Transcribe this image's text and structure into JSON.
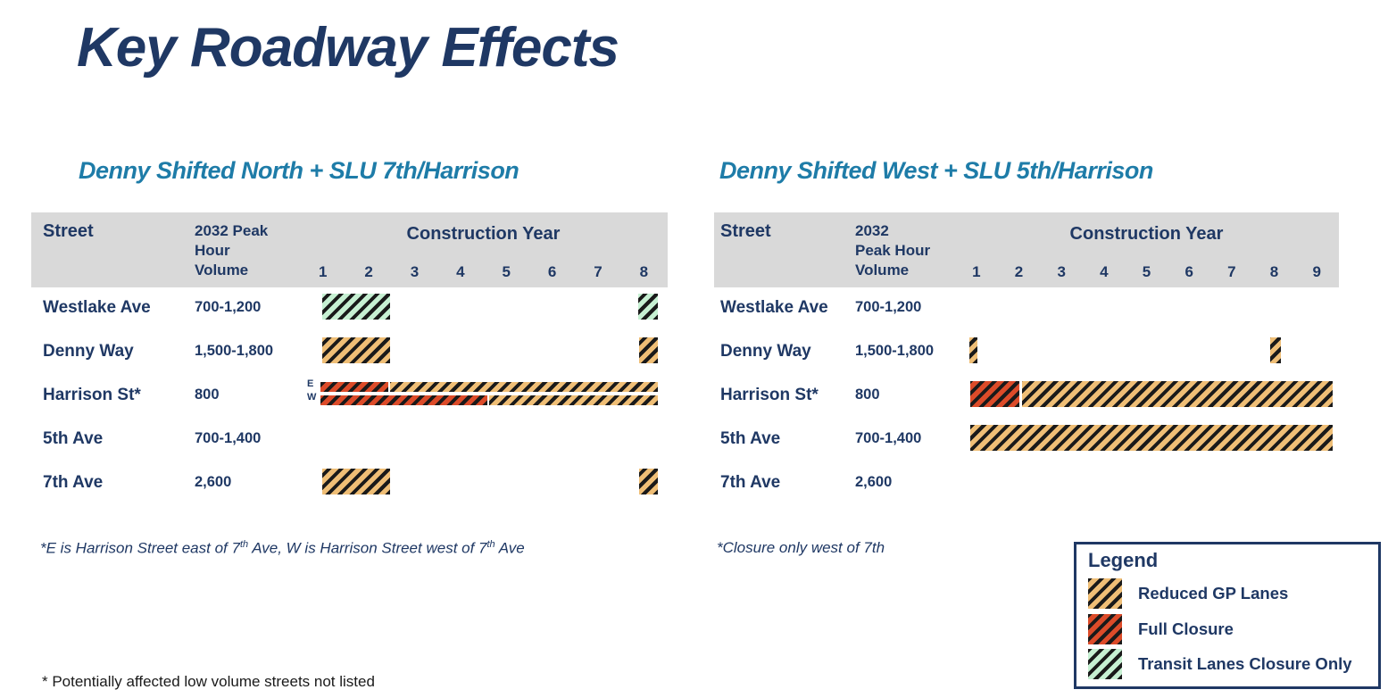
{
  "title": "Key Roadway Effects",
  "colors": {
    "navy": "#1f3864",
    "teal": "#1e7ca8",
    "header_gray": "#d9d9d9",
    "reduced_gp": "#efbe76",
    "full_closure": "#dc4b29",
    "transit_only": "#c6f0d2",
    "stripe": "#1a1a1a"
  },
  "tables": [
    {
      "subtitle": "Denny Shifted North + SLU 7th/Harrison",
      "header": {
        "street": "Street",
        "volume": "2032 Peak\nHour\nVolume",
        "construction": "Construction Year",
        "years": [
          "1",
          "2",
          "3",
          "4",
          "5",
          "6",
          "7",
          "8"
        ]
      },
      "rows": [
        {
          "street": "Westlake Ave",
          "volume": "700-1,200",
          "bars": [
            {
              "type": "transit",
              "start_pct": 6.1,
              "end_pct": 24.6,
              "years_approx": "1-2"
            },
            {
              "type": "transit",
              "start_pct": 92.2,
              "end_pct": 97.6,
              "years_approx": "8"
            }
          ]
        },
        {
          "street": "Denny Way",
          "volume": "1,500-1,800",
          "bars": [
            {
              "type": "gp",
              "start_pct": 6.1,
              "end_pct": 24.6,
              "years_approx": "1-2"
            },
            {
              "type": "gp",
              "start_pct": 92.5,
              "end_pct": 97.6,
              "years_approx": "8"
            }
          ]
        },
        {
          "street": "Harrison St*",
          "volume": "800",
          "subrows": [
            {
              "label": "E",
              "pos": "e",
              "bars": [
                {
                  "type": "full",
                  "start_pct": 5.6,
                  "end_pct": 24.1,
                  "years_approx": "1-2"
                },
                {
                  "type": "gp",
                  "start_pct": 24.6,
                  "end_pct": 97.6,
                  "years_approx": "2-8"
                }
              ]
            },
            {
              "label": "W",
              "pos": "w",
              "bars": [
                {
                  "type": "full",
                  "start_pct": 5.6,
                  "end_pct": 51.1,
                  "years_approx": "1-4"
                },
                {
                  "type": "gp",
                  "start_pct": 51.6,
                  "end_pct": 97.6,
                  "years_approx": "4-8"
                }
              ]
            }
          ]
        },
        {
          "street": "5th Ave",
          "volume": "700-1,400",
          "bars": []
        },
        {
          "street": "7th Ave",
          "volume": "2,600",
          "bars": [
            {
              "type": "gp",
              "start_pct": 6.1,
              "end_pct": 24.6,
              "years_approx": "1-2"
            },
            {
              "type": "gp",
              "start_pct": 92.5,
              "end_pct": 97.6,
              "years_approx": "8"
            }
          ]
        }
      ],
      "footnote_segments": [
        "*E is Harrison Street east of 7",
        "th",
        " Ave, W is Harrison Street west of 7",
        "th",
        " Ave"
      ]
    },
    {
      "subtitle": "Denny Shifted West + SLU 5th/Harrison",
      "header": {
        "street": "Street",
        "volume": "2032\nPeak Hour\nVolume",
        "construction": "Construction Year",
        "years": [
          "1",
          "2",
          "3",
          "4",
          "5",
          "6",
          "7",
          "8",
          "9"
        ]
      },
      "rows": [
        {
          "street": "Westlake Ave",
          "volume": "700-1,200",
          "bars": []
        },
        {
          "street": "Denny Way",
          "volume": "1,500-1,800",
          "bars": [
            {
              "type": "gp",
              "start_pct": 3.7,
              "end_pct": 5.8,
              "years_approx": "1"
            },
            {
              "type": "gp",
              "start_pct": 82.3,
              "end_pct": 85.1,
              "years_approx": "8"
            }
          ]
        },
        {
          "street": "Harrison St*",
          "volume": "800",
          "bars": [
            {
              "type": "full",
              "start_pct": 4.0,
              "end_pct": 16.8,
              "years_approx": "1"
            },
            {
              "type": "gp",
              "start_pct": 17.5,
              "end_pct": 98.6,
              "years_approx": "2-9"
            }
          ]
        },
        {
          "street": "5th Ave",
          "volume": "700-1,400",
          "bars": [
            {
              "type": "gp",
              "start_pct": 4.0,
              "end_pct": 98.6,
              "years_approx": "1-9"
            }
          ]
        },
        {
          "street": "7th Ave",
          "volume": "2,600",
          "bars": []
        }
      ],
      "footnote_segments": [
        "*Closure only west of 7th"
      ]
    }
  ],
  "legend": {
    "title": "Legend",
    "items": [
      {
        "type": "gp",
        "label": "Reduced GP Lanes"
      },
      {
        "type": "full",
        "label": "Full Closure"
      },
      {
        "type": "transit",
        "label": "Transit Lanes Closure Only"
      }
    ]
  },
  "bottom_note": "* Potentially affected low volume streets not listed"
}
